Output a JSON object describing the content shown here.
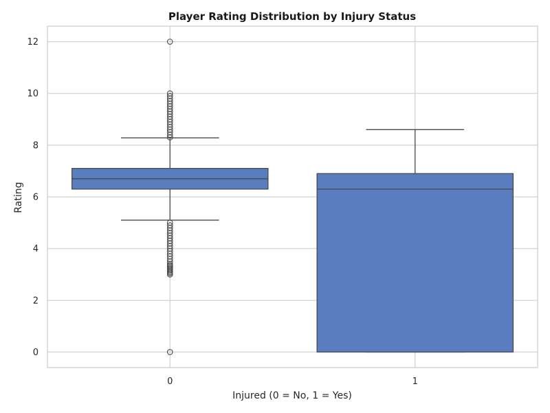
{
  "chart_data": {
    "type": "box",
    "title": "Player Rating Distribution by Injury Status",
    "xlabel": "Injured (0 = No, 1 = Yes)",
    "ylabel": "Rating",
    "categories": [
      "0",
      "1"
    ],
    "ylim": [
      -0.6,
      12.6
    ],
    "yticks": [
      0,
      2,
      4,
      6,
      8,
      10,
      12
    ],
    "grid": true,
    "legend": "none",
    "colors": {
      "box": "#5a7dbf",
      "line": "#4a4a4a",
      "grid": "#d0d0d0",
      "spine": "#cccccc"
    },
    "boxes": [
      {
        "category": "0",
        "q1": 6.3,
        "median": 6.7,
        "q3": 7.1,
        "whisker_low": 5.1,
        "whisker_high": 8.28,
        "outliers": [
          0,
          3.0,
          3.05,
          3.1,
          3.15,
          3.2,
          3.25,
          3.3,
          3.35,
          3.4,
          3.5,
          3.6,
          3.7,
          3.8,
          3.9,
          4.0,
          4.1,
          4.2,
          4.3,
          4.4,
          4.5,
          4.6,
          4.7,
          4.8,
          4.9,
          5.0,
          8.3,
          8.4,
          8.5,
          8.6,
          8.7,
          8.8,
          8.9,
          9.0,
          9.1,
          9.2,
          9.3,
          9.4,
          9.5,
          9.6,
          9.7,
          9.8,
          9.9,
          10.0,
          12.0
        ]
      },
      {
        "category": "1",
        "q1": 0.0,
        "median": 6.3,
        "q3": 6.9,
        "whisker_low": 0.0,
        "whisker_high": 8.6,
        "outliers": []
      }
    ]
  }
}
